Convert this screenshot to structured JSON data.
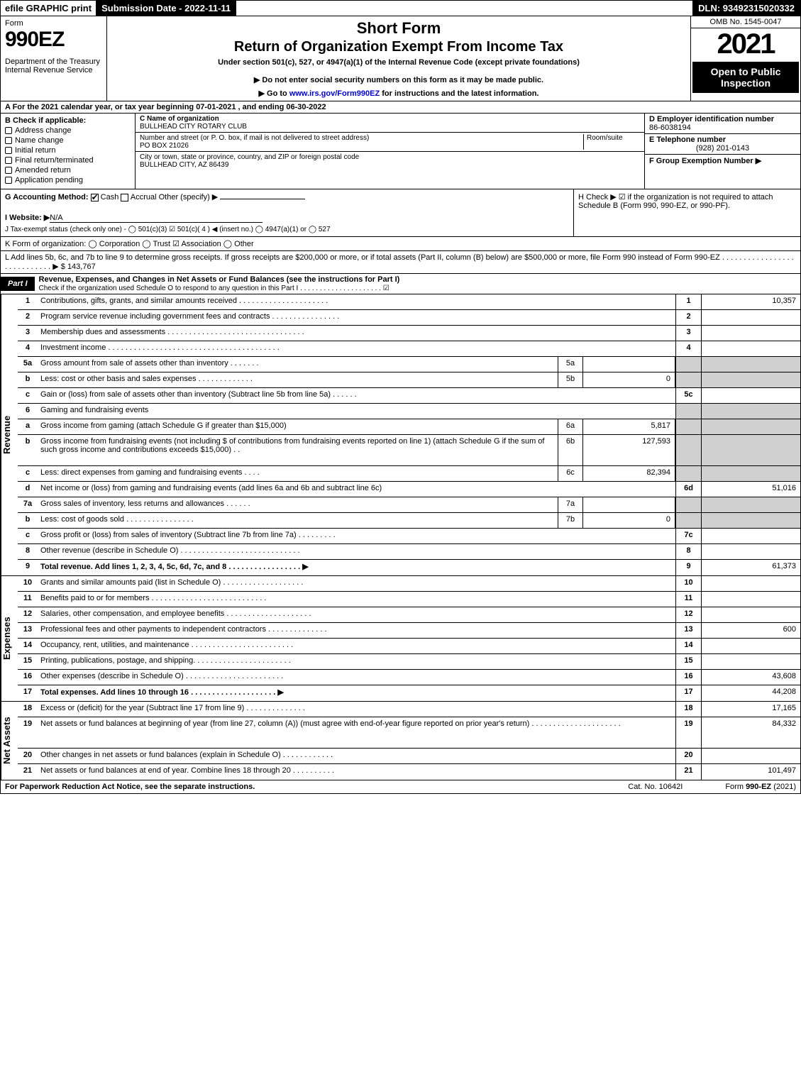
{
  "topbar": {
    "efile": "efile GRAPHIC print",
    "subdate": "Submission Date - 2022-11-11",
    "dln": "DLN: 93492315020332"
  },
  "header": {
    "form": "Form",
    "num": "990EZ",
    "dept": "Department of the Treasury\nInternal Revenue Service",
    "sf": "Short Form",
    "ret": "Return of Organization Exempt From Income Tax",
    "under": "Under section 501(c), 527, or 4947(a)(1) of the Internal Revenue Code (except private foundations)",
    "donot": "▶ Do not enter social security numbers on this form as it may be made public.",
    "goto": "▶ Go to www.irs.gov/Form990EZ for instructions and the latest information.",
    "omb": "OMB No. 1545-0047",
    "year": "2021",
    "open": "Open to Public Inspection"
  },
  "A": "A  For the 2021 calendar year, or tax year beginning 07-01-2021 , and ending 06-30-2022",
  "B": {
    "hdr": "B  Check if applicable:",
    "items": [
      "Address change",
      "Name change",
      "Initial return",
      "Final return/terminated",
      "Amended return",
      "Application pending"
    ]
  },
  "C": {
    "name_lbl": "C Name of organization",
    "name": "BULLHEAD CITY ROTARY CLUB",
    "street_lbl": "Number and street (or P. O. box, if mail is not delivered to street address)",
    "room": "Room/suite",
    "street": "PO BOX 21026",
    "city_lbl": "City or town, state or province, country, and ZIP or foreign postal code",
    "city": "BULLHEAD CITY, AZ  86439"
  },
  "D": {
    "lbl": "D Employer identification number",
    "ein": "86-6038194",
    "tel_lbl": "E Telephone number",
    "tel": "(928) 201-0143",
    "grp_lbl": "F Group Exemption Number   ▶"
  },
  "G": {
    "lbl": "G Accounting Method:",
    "cash": "Cash",
    "accrual": "Accrual",
    "other": "Other (specify) ▶"
  },
  "H": "H   Check ▶ ☑ if the organization is not required to attach Schedule B (Form 990, 990-EZ, or 990-PF).",
  "I": {
    "lbl": "I Website: ▶",
    "val": "N/A"
  },
  "J": "J Tax-exempt status (check only one) - ◯ 501(c)(3) ☑ 501(c)( 4 ) ◀ (insert no.) ◯ 4947(a)(1) or ◯ 527",
  "K": "K Form of organization:   ◯ Corporation   ◯ Trust   ☑ Association   ◯ Other",
  "L": {
    "txt": "L Add lines 5b, 6c, and 7b to line 9 to determine gross receipts. If gross receipts are $200,000 or more, or if total assets (Part II, column (B) below) are $500,000 or more, file Form 990 instead of Form 990-EZ  .  .  .  .  .  .  .  .  .  .  .  .  .  .  .  .  .  .  .  .  .  .  .  .  .  .  .  . ▶",
    "amt": "$ 143,767"
  },
  "partI": {
    "lbl": "Part I",
    "title": "Revenue, Expenses, and Changes in Net Assets or Fund Balances (see the instructions for Part I)",
    "sub": "Check if the organization used Schedule O to respond to any question in this Part I  .  .  .  .  .  .  .  .  .  .  .  .  .  .  .  .  .  .  .  .  .     ☑"
  },
  "rev": [
    {
      "n": "1",
      "d": "Contributions, gifts, grants, and similar amounts received  .  .  .  .  .  .  .  .  .  .  .  .  .  .  .  .  .  .  .  .  .",
      "ln": "1",
      "v": "10,357"
    },
    {
      "n": "2",
      "d": "Program service revenue including government fees and contracts  .  .  .  .  .  .  .  .  .  .  .  .  .  .  .  .",
      "ln": "2",
      "v": ""
    },
    {
      "n": "3",
      "d": "Membership dues and assessments  .  .  .  .  .  .  .  .  .  .  .  .  .  .  .  .  .  .  .  .  .  .  .  .  .  .  .  .  .  .  .  .",
      "ln": "3",
      "v": ""
    },
    {
      "n": "4",
      "d": "Investment income  .  .  .  .  .  .  .  .  .  .  .  .  .  .  .  .  .  .  .  .  .  .  .  .  .  .  .  .  .  .  .  .  .  .  .  .  .  .  .  .",
      "ln": "4",
      "v": ""
    },
    {
      "n": "5a",
      "d": "Gross amount from sale of assets other than inventory  .  .  .  .  .  .  .",
      "sub": "5a",
      "subv": "",
      "grey": true
    },
    {
      "n": "b",
      "d": "Less: cost or other basis and sales expenses  .  .  .  .  .  .  .  .  .  .  .  .  .",
      "sub": "5b",
      "subv": "0",
      "grey": true
    },
    {
      "n": "c",
      "d": "Gain or (loss) from sale of assets other than inventory (Subtract line 5b from line 5a)  .  .  .  .  .  .",
      "ln": "5c",
      "v": ""
    },
    {
      "n": "6",
      "d": "Gaming and fundraising events",
      "grey": true
    },
    {
      "n": "a",
      "d": "Gross income from gaming (attach Schedule G if greater than $15,000)",
      "sub": "6a",
      "subv": "5,817",
      "grey": true
    },
    {
      "n": "b",
      "d": "Gross income from fundraising events (not including $                 of contributions from fundraising events reported on line 1) (attach Schedule G if the sum of such gross income and contributions exceeds $15,000)      .  .",
      "sub": "6b",
      "subv": "127,593",
      "grey": true,
      "tall": true
    },
    {
      "n": "c",
      "d": "Less: direct expenses from gaming and fundraising events       .  .  .  .",
      "sub": "6c",
      "subv": "82,394",
      "grey": true
    },
    {
      "n": "d",
      "d": "Net income or (loss) from gaming and fundraising events (add lines 6a and 6b and subtract line 6c)",
      "ln": "6d",
      "v": "51,016"
    },
    {
      "n": "7a",
      "d": "Gross sales of inventory, less returns and allowances  .  .  .  .  .  .",
      "sub": "7a",
      "subv": "",
      "grey": true
    },
    {
      "n": "b",
      "d": "Less: cost of goods sold       .  .  .  .  .  .  .  .  .  .  .  .  .  .  .  .",
      "sub": "7b",
      "subv": "0",
      "grey": true
    },
    {
      "n": "c",
      "d": "Gross profit or (loss) from sales of inventory (Subtract line 7b from line 7a)  .  .  .  .  .  .  .  .  .",
      "ln": "7c",
      "v": ""
    },
    {
      "n": "8",
      "d": "Other revenue (describe in Schedule O)  .  .  .  .  .  .  .  .  .  .  .  .  .  .  .  .  .  .  .  .  .  .  .  .  .  .  .  .",
      "ln": "8",
      "v": ""
    },
    {
      "n": "9",
      "d": "Total revenue. Add lines 1, 2, 3, 4, 5c, 6d, 7c, and 8   .  .  .  .  .  .  .  .  .  .  .  .  .  .  .  .  .       ▶",
      "ln": "9",
      "v": "61,373",
      "bold": true
    }
  ],
  "exp": [
    {
      "n": "10",
      "d": "Grants and similar amounts paid (list in Schedule O)  .  .  .  .  .  .  .  .  .  .  .  .  .  .  .  .  .  .  .",
      "ln": "10",
      "v": ""
    },
    {
      "n": "11",
      "d": "Benefits paid to or for members       .  .  .  .  .  .  .  .  .  .  .  .  .  .  .  .  .  .  .  .  .  .  .  .  .  .  .",
      "ln": "11",
      "v": ""
    },
    {
      "n": "12",
      "d": "Salaries, other compensation, and employee benefits .  .  .  .  .  .  .  .  .  .  .  .  .  .  .  .  .  .  .  .",
      "ln": "12",
      "v": ""
    },
    {
      "n": "13",
      "d": "Professional fees and other payments to independent contractors .  .  .  .  .  .  .  .  .  .  .  .  .  .",
      "ln": "13",
      "v": "600"
    },
    {
      "n": "14",
      "d": "Occupancy, rent, utilities, and maintenance .  .  .  .  .  .  .  .  .  .  .  .  .  .  .  .  .  .  .  .  .  .  .  .",
      "ln": "14",
      "v": ""
    },
    {
      "n": "15",
      "d": "Printing, publications, postage, and shipping.  .  .  .  .  .  .  .  .  .  .  .  .  .  .  .  .  .  .  .  .  .  .",
      "ln": "15",
      "v": ""
    },
    {
      "n": "16",
      "d": "Other expenses (describe in Schedule O)      .  .  .  .  .  .  .  .  .  .  .  .  .  .  .  .  .  .  .  .  .  .  .",
      "ln": "16",
      "v": "43,608"
    },
    {
      "n": "17",
      "d": "Total expenses. Add lines 10 through 16       .  .  .  .  .  .  .  .  .  .  .  .  .  .  .  .  .  .  .  .       ▶",
      "ln": "17",
      "v": "44,208",
      "bold": true
    }
  ],
  "net": [
    {
      "n": "18",
      "d": "Excess or (deficit) for the year (Subtract line 17 from line 9)       .  .  .  .  .  .  .  .  .  .  .  .  .  .",
      "ln": "18",
      "v": "17,165"
    },
    {
      "n": "19",
      "d": "Net assets or fund balances at beginning of year (from line 27, column (A)) (must agree with end-of-year figure reported on prior year's return) .  .  .  .  .  .  .  .  .  .  .  .  .  .  .  .  .  .  .  .  .",
      "ln": "19",
      "v": "84,332",
      "tall": true
    },
    {
      "n": "20",
      "d": "Other changes in net assets or fund balances (explain in Schedule O) .  .  .  .  .  .  .  .  .  .  .  .",
      "ln": "20",
      "v": ""
    },
    {
      "n": "21",
      "d": "Net assets or fund balances at end of year. Combine lines 18 through 20 .  .  .  .  .  .  .  .  .  .",
      "ln": "21",
      "v": "101,497"
    }
  ],
  "sides": {
    "rev": "Revenue",
    "exp": "Expenses",
    "net": "Net Assets"
  },
  "foot": {
    "a": "For Paperwork Reduction Act Notice, see the separate instructions.",
    "b": "Cat. No. 10642I",
    "c": "Form 990-EZ (2021)"
  },
  "goto_link": "www.irs.gov/Form990EZ"
}
